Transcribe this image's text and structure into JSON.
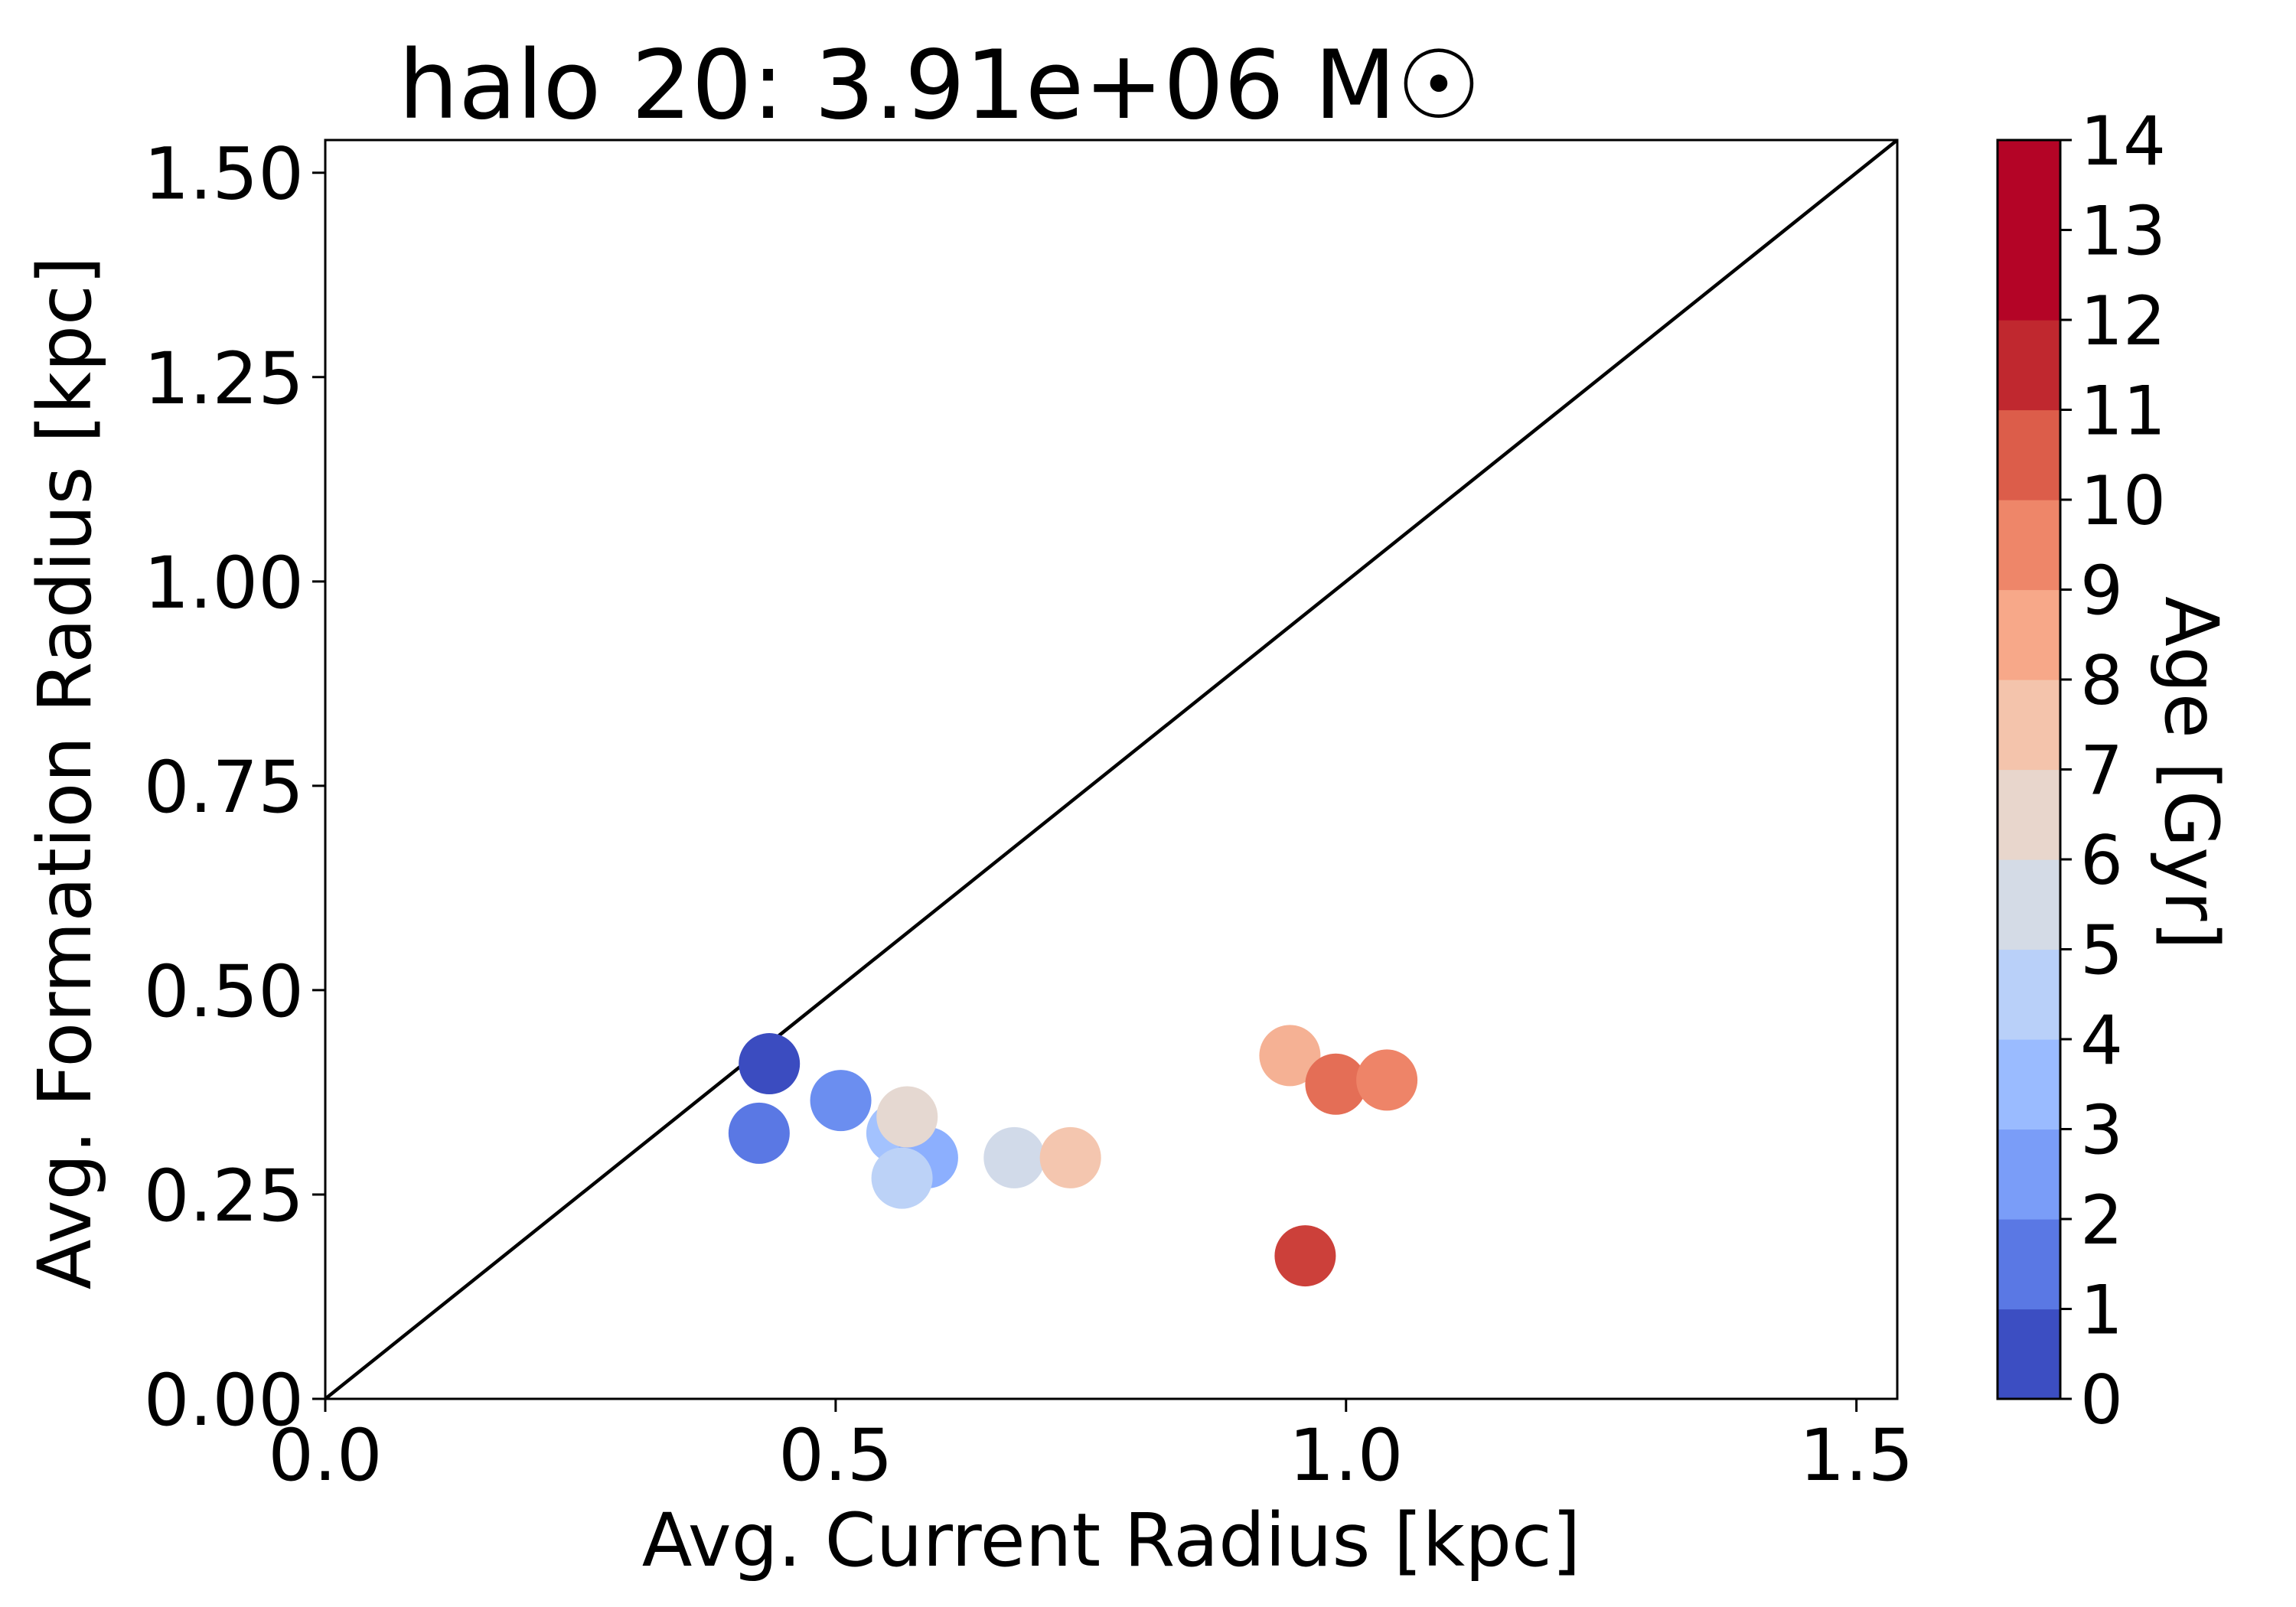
{
  "chart_data": {
    "type": "scatter",
    "title": "halo 20: 3.91e+06 M☉",
    "xlabel": "Avg. Current Radius [kpc]",
    "ylabel": "Avg. Formation Radius [kpc]",
    "xlim": [
      0.0,
      1.54
    ],
    "ylim": [
      0.0,
      1.54
    ],
    "xticks": [
      0.0,
      0.5,
      1.0,
      1.5
    ],
    "xtick_labels": [
      "0.0",
      "0.5",
      "1.0",
      "1.5"
    ],
    "yticks": [
      0.0,
      0.25,
      0.5,
      0.75,
      1.0,
      1.25,
      1.5
    ],
    "ytick_labels": [
      "0.00",
      "0.25",
      "0.50",
      "0.75",
      "1.00",
      "1.25",
      "1.50"
    ],
    "reference_line": "y = x",
    "grid": false,
    "colorbar": {
      "label": "Age [Gyr]",
      "min": 0,
      "max": 14,
      "ticks": [
        0,
        1,
        2,
        3,
        4,
        5,
        6,
        7,
        8,
        9,
        10,
        11,
        12,
        13,
        14
      ],
      "tick_labels": [
        "0",
        "1",
        "2",
        "3",
        "4",
        "5",
        "6",
        "7",
        "8",
        "9",
        "10",
        "11",
        "12",
        "13",
        "14"
      ],
      "colormap": "coolwarm",
      "band_colors": [
        "#3c4ec2",
        "#5a78e4",
        "#7a9df8",
        "#9abbff",
        "#b9d0f9",
        "#d4dbe6",
        "#e8d6cc",
        "#f4c4ac",
        "#f7a889",
        "#ee8669",
        "#dc5d4a",
        "#c0282f",
        "#b40426",
        "#b40426"
      ]
    },
    "points": [
      {
        "x": 0.435,
        "y": 0.41,
        "age": 0.5,
        "color": "#3b4cc0"
      },
      {
        "x": 0.425,
        "y": 0.325,
        "age": 1.5,
        "color": "#5a78e4"
      },
      {
        "x": 0.505,
        "y": 0.365,
        "age": 2.5,
        "color": "#6b8ef0"
      },
      {
        "x": 0.56,
        "y": 0.325,
        "age": 4.5,
        "color": "#a3c2fe"
      },
      {
        "x": 0.59,
        "y": 0.295,
        "age": 3.5,
        "color": "#8caffe"
      },
      {
        "x": 0.565,
        "y": 0.27,
        "age": 5.5,
        "color": "#bcd2f7"
      },
      {
        "x": 0.57,
        "y": 0.345,
        "age": 7.5,
        "color": "#e5d8d1"
      },
      {
        "x": 0.675,
        "y": 0.295,
        "age": 6.5,
        "color": "#d1dae9"
      },
      {
        "x": 0.73,
        "y": 0.295,
        "age": 8.5,
        "color": "#f4c6af"
      },
      {
        "x": 0.945,
        "y": 0.42,
        "age": 9.5,
        "color": "#f5b194"
      },
      {
        "x": 0.99,
        "y": 0.385,
        "age": 11.5,
        "color": "#e46e56"
      },
      {
        "x": 1.04,
        "y": 0.39,
        "age": 10.5,
        "color": "#ee8468"
      },
      {
        "x": 0.96,
        "y": 0.175,
        "age": 13.5,
        "color": "#cc403a"
      }
    ]
  }
}
